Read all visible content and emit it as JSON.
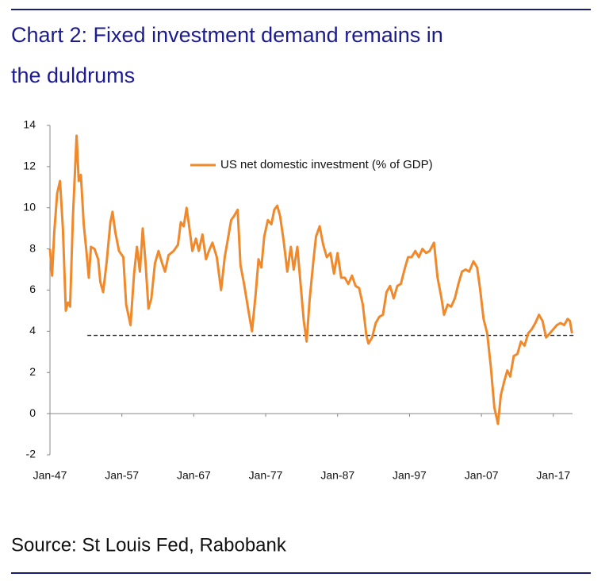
{
  "chart_data": {
    "type": "line",
    "title_lines": [
      "Chart 2: Fixed investment demand remains in",
      "the duldrums"
    ],
    "source": "Source: St Louis Fed, Rabobank",
    "x": [
      1947,
      1947.3,
      1947.6,
      1948,
      1948.4,
      1948.8,
      1949.2,
      1949.5,
      1949.8,
      1950.2,
      1950.7,
      1951,
      1951.3,
      1951.7,
      1952.1,
      1952.4,
      1952.7,
      1953.2,
      1953.7,
      1954,
      1954.4,
      1954.9,
      1955.4,
      1955.7,
      1956.1,
      1956.6,
      1957.2,
      1957.6,
      1958.2,
      1958.7,
      1959.1,
      1959.5,
      1959.9,
      1960.3,
      1960.7,
      1961.1,
      1961.6,
      1962.1,
      1962.6,
      1963,
      1963.5,
      1964.2,
      1964.8,
      1965.2,
      1965.6,
      1966,
      1966.4,
      1966.8,
      1967.3,
      1967.7,
      1968.2,
      1968.7,
      1969.1,
      1969.6,
      1970.2,
      1970.8,
      1971.3,
      1971.8,
      1972.2,
      1972.6,
      1973.1,
      1973.5,
      1974,
      1974.6,
      1975.1,
      1975.6,
      1976,
      1976.4,
      1976.8,
      1977.3,
      1977.8,
      1978.2,
      1978.6,
      1979,
      1979.5,
      1980,
      1980.5,
      1980.9,
      1981.4,
      1981.9,
      1982.3,
      1982.7,
      1983.1,
      1983.6,
      1984,
      1984.5,
      1985,
      1985.5,
      1986,
      1986.5,
      1987,
      1987.5,
      1988,
      1988.5,
      1989,
      1989.5,
      1990,
      1990.5,
      1991,
      1991.3,
      1991.8,
      1992.3,
      1992.8,
      1993.3,
      1993.8,
      1994.3,
      1994.8,
      1995.3,
      1995.8,
      1996.3,
      1996.8,
      1997.3,
      1997.8,
      1998.3,
      1998.8,
      1999.3,
      1999.8,
      2000.4,
      2000.9,
      2001.4,
      2001.8,
      2002.3,
      2002.8,
      2003.3,
      2003.8,
      2004.3,
      2004.8,
      2005.3,
      2005.9,
      2006.4,
      2006.8,
      2007.3,
      2007.8,
      2008.3,
      2008.8,
      2009.3,
      2009.7,
      2010.2,
      2010.6,
      2011,
      2011.5,
      2012,
      2012.5,
      2013,
      2013.5,
      2014,
      2014.5,
      2015,
      2015.5,
      2016,
      2016.5,
      2017,
      2017.5,
      2018,
      2018.5,
      2019,
      2019.3,
      2019.6
    ],
    "series": [
      {
        "name": "US net domestic investment (% of GDP)",
        "color": "#f0892c",
        "values": [
          8,
          6.7,
          8.8,
          10.7,
          11.3,
          9,
          5,
          5.4,
          5.2,
          9.6,
          13.5,
          11.3,
          11.6,
          9.2,
          7.8,
          6.6,
          8.1,
          8,
          7.5,
          6.4,
          5.9,
          7.4,
          9.3,
          9.8,
          8.8,
          7.9,
          7.6,
          5.3,
          4.3,
          6.8,
          8.1,
          6.9,
          9,
          7.3,
          5.1,
          5.6,
          7.3,
          7.9,
          7.3,
          6.9,
          7.7,
          7.9,
          8.2,
          9.3,
          9.1,
          10,
          9,
          7.9,
          8.5,
          7.9,
          8.7,
          7.5,
          7.9,
          8.3,
          7.6,
          6,
          7.6,
          8.6,
          9.4,
          9.6,
          9.9,
          7.2,
          6.3,
          5,
          4,
          5.8,
          7.5,
          7.1,
          8.6,
          9.4,
          9.2,
          9.9,
          10.1,
          9.6,
          8.4,
          6.9,
          8.1,
          7,
          8.1,
          6.1,
          4.5,
          3.5,
          5.5,
          7.3,
          8.6,
          9.1,
          8.2,
          7.6,
          7.8,
          6.8,
          7.8,
          6.6,
          6.6,
          6.3,
          6.7,
          6.2,
          6.1,
          5.3,
          3.8,
          3.4,
          3.7,
          4.4,
          4.7,
          4.8,
          5.9,
          6.2,
          5.6,
          6.2,
          6.3,
          7,
          7.6,
          7.6,
          7.9,
          7.6,
          8,
          7.8,
          7.9,
          8.3,
          6.6,
          5.7,
          4.8,
          5.3,
          5.2,
          5.6,
          6.3,
          6.9,
          7,
          6.9,
          7.4,
          7.1,
          6.1,
          4.6,
          3.9,
          2.3,
          0.3,
          -0.5,
          0.9,
          1.6,
          2.1,
          1.8,
          2.8,
          2.9,
          3.5,
          3.3,
          3.9,
          4.1,
          4.4,
          4.8,
          4.5,
          3.7,
          3.9,
          4.1,
          4.3,
          4.4,
          4.3,
          4.6,
          4.5,
          3.9
        ]
      }
    ],
    "reference_line": {
      "y": 3.8,
      "x": [
        1952.2,
        2020
      ]
    },
    "xlim": [
      1947,
      2020
    ],
    "xticks": [
      {
        "value": 1947,
        "label": "Jan-47"
      },
      {
        "value": 1957,
        "label": "Jan-57"
      },
      {
        "value": 1967,
        "label": "Jan-67"
      },
      {
        "value": 1977,
        "label": "Jan-77"
      },
      {
        "value": 1987,
        "label": "Jan-87"
      },
      {
        "value": 1997,
        "label": "Jan-97"
      },
      {
        "value": 2007,
        "label": "Jan-07"
      },
      {
        "value": 2017,
        "label": "Jan-17"
      }
    ],
    "ylim": [
      -2,
      14
    ],
    "yticks": [
      -2,
      0,
      2,
      4,
      6,
      8,
      10,
      12,
      14
    ],
    "grid": false,
    "legend": "top"
  }
}
